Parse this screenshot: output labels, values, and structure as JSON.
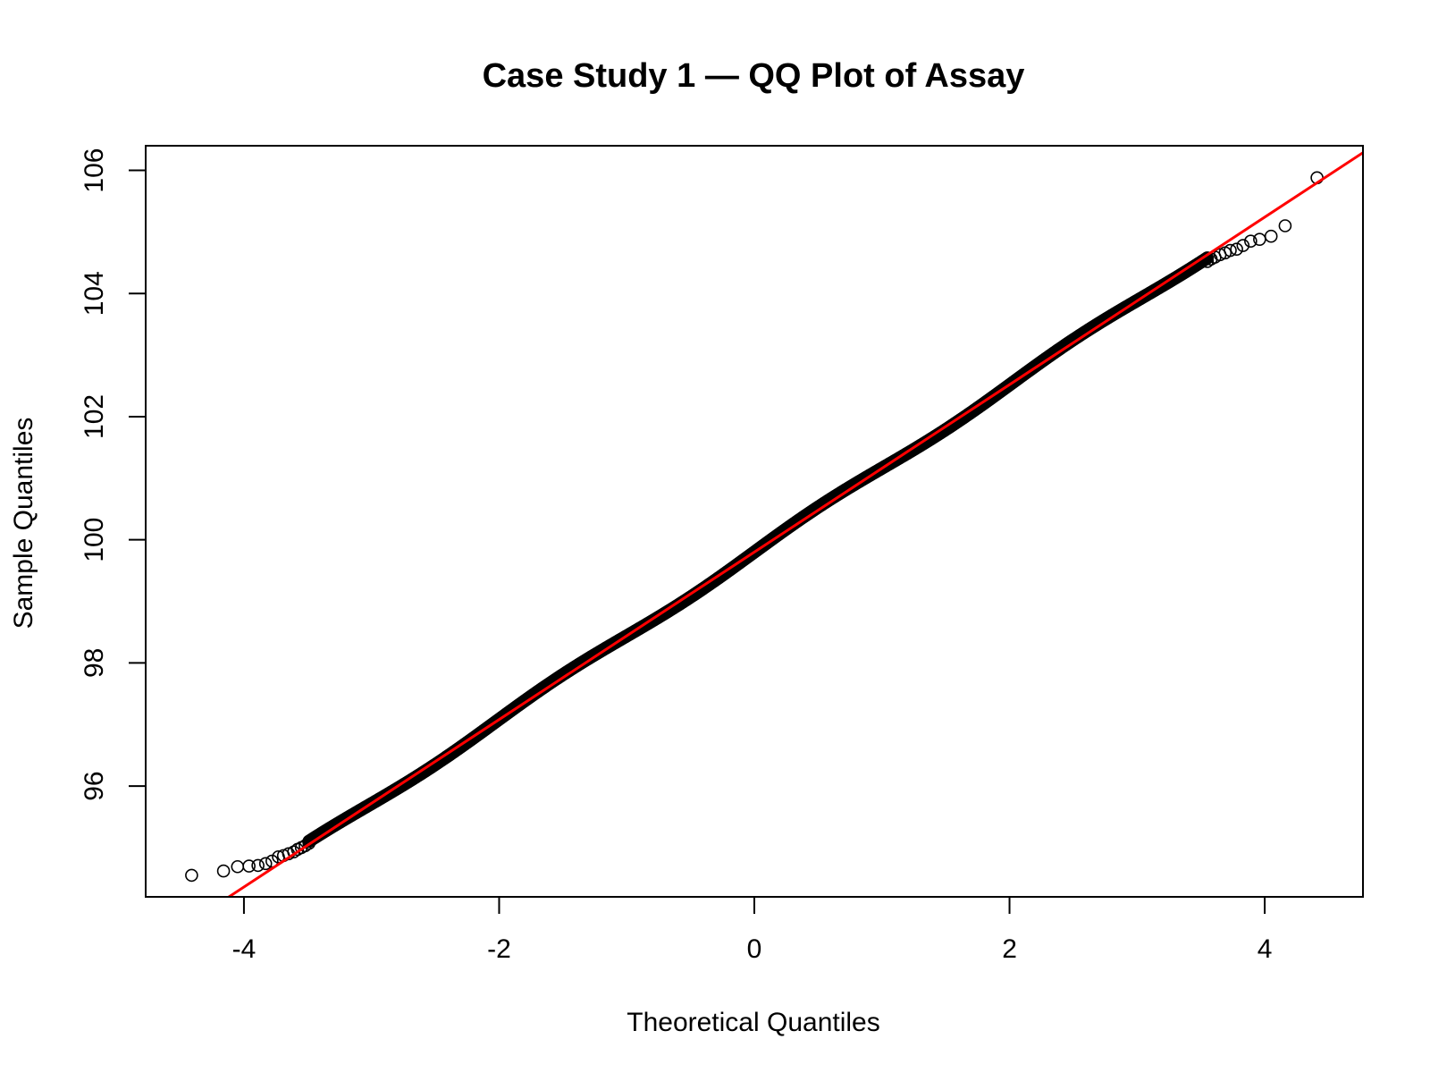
{
  "chart_data": {
    "type": "scatter",
    "title": "Case Study 1 — QQ Plot of Assay",
    "xlabel": "Theoretical Quantiles",
    "ylabel": "Sample Quantiles",
    "xlim": [
      -4.77,
      4.77
    ],
    "ylim": [
      94.2,
      106.4
    ],
    "x_ticks": [
      -4,
      -2,
      0,
      2,
      4
    ],
    "y_ticks": [
      96,
      98,
      100,
      102,
      104,
      106
    ],
    "reference_line": {
      "intercept": 99.8,
      "slope": 1.36,
      "color": "#ff0000"
    },
    "series": [
      {
        "marker": "open-circle",
        "color": "#000000",
        "outlier_points": [
          {
            "x": -4.41,
            "y": 94.55
          },
          {
            "x": -4.16,
            "y": 94.62
          },
          {
            "x": -4.05,
            "y": 94.69
          },
          {
            "x": -3.96,
            "y": 94.7
          },
          {
            "x": -3.89,
            "y": 94.71
          },
          {
            "x": -3.83,
            "y": 94.74
          },
          {
            "x": -3.78,
            "y": 94.78
          },
          {
            "x": -3.73,
            "y": 94.85
          },
          {
            "x": -3.69,
            "y": 94.87
          },
          {
            "x": -3.65,
            "y": 94.9
          },
          {
            "x": -3.61,
            "y": 94.93
          },
          {
            "x": -3.58,
            "y": 94.97
          },
          {
            "x": -3.55,
            "y": 95.0
          },
          {
            "x": -3.52,
            "y": 95.03
          },
          {
            "x": -3.49,
            "y": 95.07
          },
          {
            "x": 3.55,
            "y": 104.52
          },
          {
            "x": 3.58,
            "y": 104.56
          },
          {
            "x": 3.61,
            "y": 104.59
          },
          {
            "x": 3.65,
            "y": 104.63
          },
          {
            "x": 3.69,
            "y": 104.66
          },
          {
            "x": 3.73,
            "y": 104.7
          },
          {
            "x": 3.78,
            "y": 104.72
          },
          {
            "x": 3.83,
            "y": 104.78
          },
          {
            "x": 3.89,
            "y": 104.85
          },
          {
            "x": 3.96,
            "y": 104.88
          },
          {
            "x": 4.05,
            "y": 104.93
          },
          {
            "x": 4.16,
            "y": 105.1
          },
          {
            "x": 4.41,
            "y": 105.88
          }
        ],
        "dense_band": {
          "x_from": -3.49,
          "x_to": 3.55
        }
      }
    ],
    "grid": false,
    "legend": "none"
  }
}
